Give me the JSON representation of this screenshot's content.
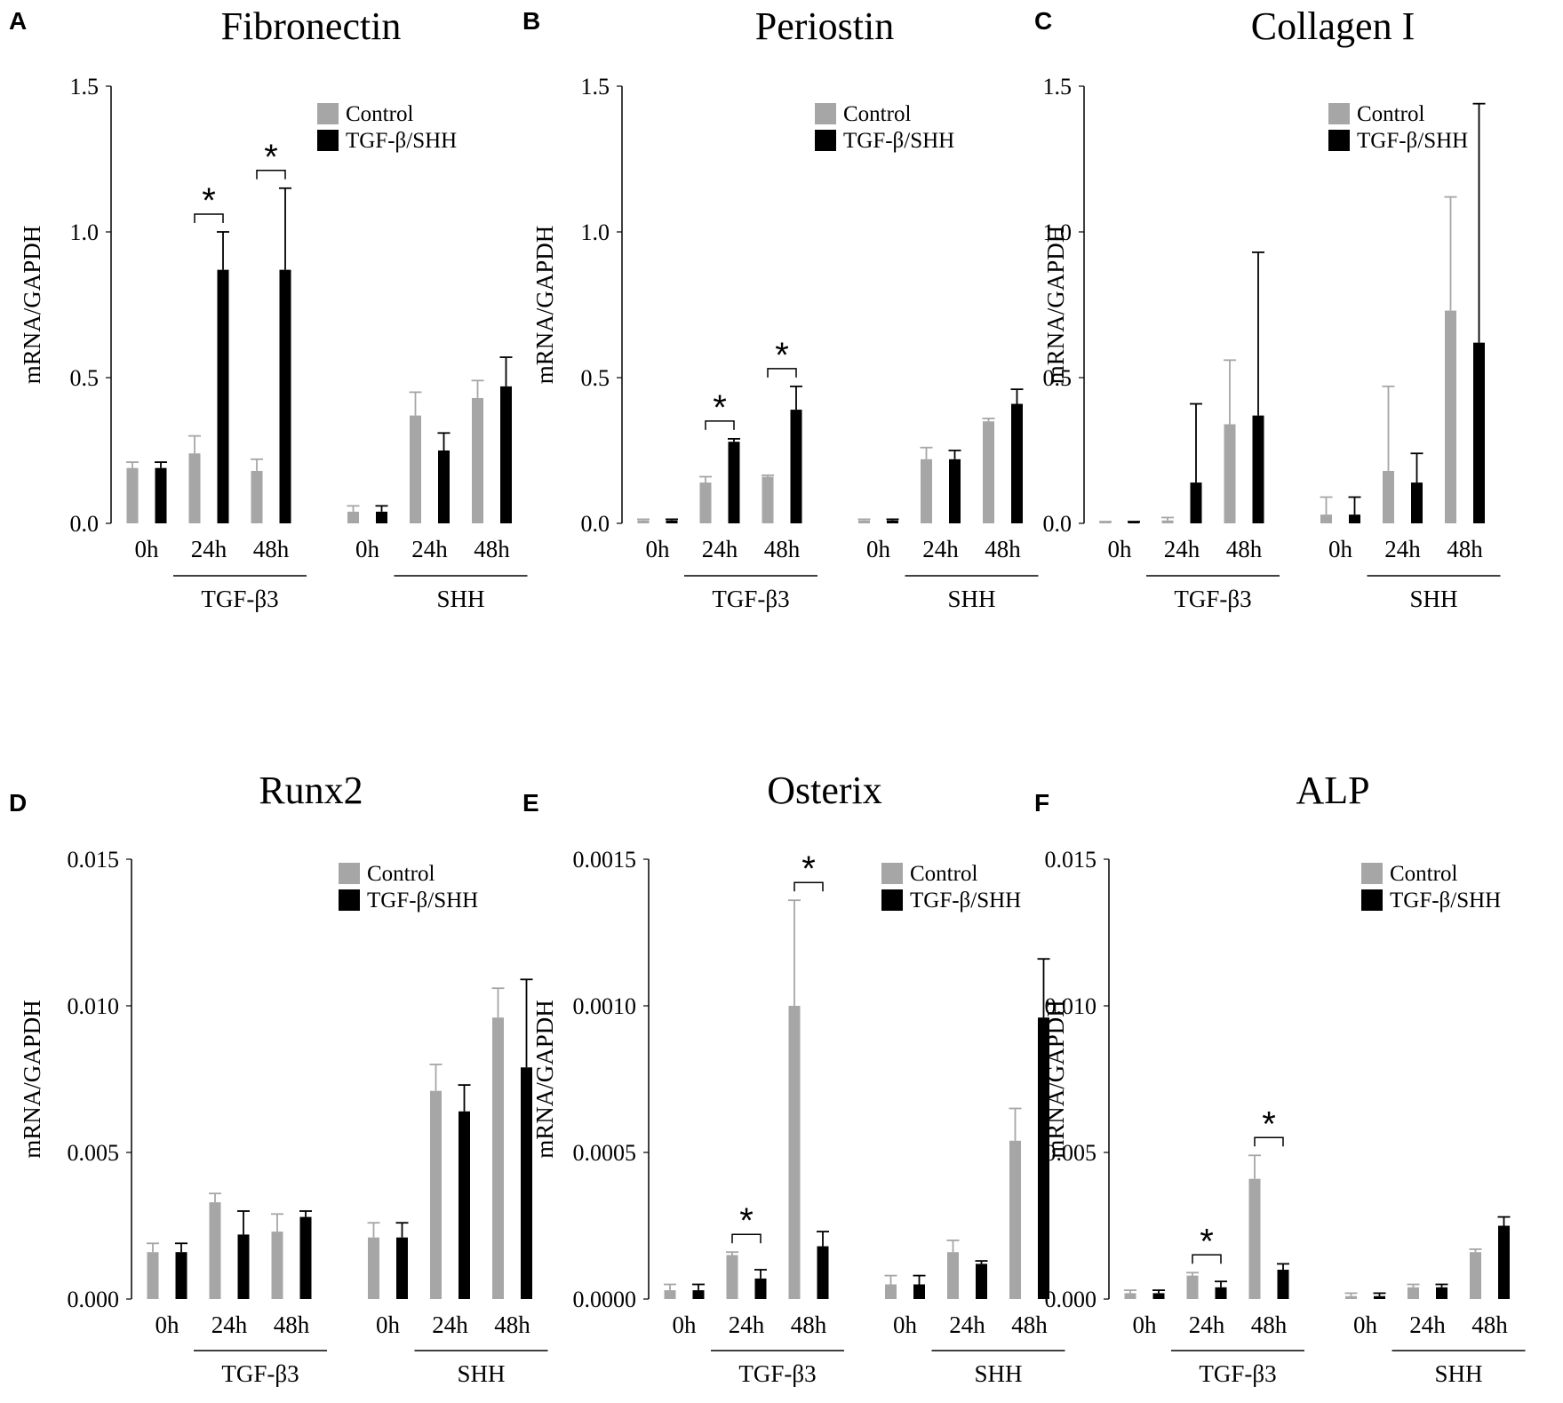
{
  "colors": {
    "control": "#a6a6a6",
    "treated": "#000000",
    "axis": "#000000"
  },
  "chart_data": [
    {
      "type": "bar",
      "letter": "A",
      "title": "Fibronectin",
      "ylabel": "mRNA/GAPDH",
      "ylim": [
        0,
        1.5
      ],
      "yticks": [
        "0.0",
        "0.5",
        "1.0",
        "1.5"
      ],
      "categories": [
        "0h",
        "24h",
        "48h",
        "0h",
        "24h",
        "48h"
      ],
      "groups": [
        "TGF-β3",
        "SHH"
      ],
      "legend": [
        "Control",
        "TGF-β/SHH"
      ],
      "series": [
        {
          "name": "Control",
          "values": [
            0.19,
            0.24,
            0.18,
            0.04,
            0.37,
            0.43
          ],
          "errors": [
            0.02,
            0.06,
            0.04,
            0.02,
            0.08,
            0.06
          ]
        },
        {
          "name": "TGF-β/SHH",
          "values": [
            0.19,
            0.87,
            0.87,
            0.04,
            0.25,
            0.47
          ],
          "errors": [
            0.02,
            0.13,
            0.28,
            0.02,
            0.06,
            0.1
          ]
        }
      ],
      "significance": [
        {
          "category": 1,
          "label": "*"
        },
        {
          "category": 2,
          "label": "*"
        }
      ]
    },
    {
      "type": "bar",
      "letter": "B",
      "title": "Periostin",
      "ylabel": "mRNA/GAPDH",
      "ylim": [
        0,
        1.5
      ],
      "yticks": [
        "0.0",
        "0.5",
        "1.0",
        "1.5"
      ],
      "categories": [
        "0h",
        "24h",
        "48h",
        "0h",
        "24h",
        "48h"
      ],
      "groups": [
        "TGF-β3",
        "SHH"
      ],
      "legend": [
        "Control",
        "TGF-β/SHH"
      ],
      "series": [
        {
          "name": "Control",
          "values": [
            0.01,
            0.14,
            0.16,
            0.01,
            0.22,
            0.35
          ],
          "errors": [
            0.004,
            0.02,
            0.005,
            0.004,
            0.04,
            0.01
          ]
        },
        {
          "name": "TGF-β/SHH",
          "values": [
            0.01,
            0.28,
            0.39,
            0.01,
            0.22,
            0.41
          ],
          "errors": [
            0.004,
            0.01,
            0.08,
            0.004,
            0.03,
            0.05
          ]
        }
      ],
      "significance": [
        {
          "category": 1,
          "label": "*"
        },
        {
          "category": 2,
          "label": "*"
        }
      ]
    },
    {
      "type": "bar",
      "letter": "C",
      "title": "Collagen I",
      "ylabel": "mRNA/GAPDH",
      "ylim": [
        0,
        1.5
      ],
      "yticks": [
        "0.0",
        "0.5",
        "1.0",
        "1.5"
      ],
      "categories": [
        "0h",
        "24h",
        "48h",
        "0h",
        "24h",
        "48h"
      ],
      "groups": [
        "TGF-β3",
        "SHH"
      ],
      "legend": [
        "Control",
        "TGF-β/SHH"
      ],
      "series": [
        {
          "name": "Control",
          "values": [
            0.004,
            0.01,
            0.34,
            0.03,
            0.18,
            0.73
          ],
          "errors": [
            0.002,
            0.01,
            0.22,
            0.06,
            0.29,
            0.39
          ]
        },
        {
          "name": "TGF-β/SHH",
          "values": [
            0.004,
            0.14,
            0.37,
            0.03,
            0.14,
            0.62
          ],
          "errors": [
            0.002,
            0.27,
            0.56,
            0.06,
            0.1,
            0.82
          ]
        }
      ],
      "significance": []
    },
    {
      "type": "bar",
      "letter": "D",
      "title": "Runx2",
      "ylabel": "mRNA/GAPDH",
      "ylim": [
        0,
        0.015
      ],
      "yticks": [
        "0.000",
        "0.005",
        "0.010",
        "0.015"
      ],
      "categories": [
        "0h",
        "24h",
        "48h",
        "0h",
        "24h",
        "48h"
      ],
      "groups": [
        "TGF-β3",
        "SHH"
      ],
      "legend": [
        "Control",
        "TGF-β/SHH"
      ],
      "series": [
        {
          "name": "Control",
          "values": [
            0.0016,
            0.0033,
            0.0023,
            0.0021,
            0.0071,
            0.0096
          ],
          "errors": [
            0.0003,
            0.0003,
            0.0006,
            0.0005,
            0.0009,
            0.001
          ]
        },
        {
          "name": "TGF-β/SHH",
          "values": [
            0.0016,
            0.0022,
            0.0028,
            0.0021,
            0.0064,
            0.0079
          ],
          "errors": [
            0.0003,
            0.0008,
            0.0002,
            0.0005,
            0.0009,
            0.003
          ]
        }
      ],
      "significance": []
    },
    {
      "type": "bar",
      "letter": "E",
      "title": "Osterix",
      "ylabel": "mRNA/GAPDH",
      "ylim": [
        0,
        0.0015
      ],
      "yticks": [
        "0.0000",
        "0.0005",
        "0.0010",
        "0.0015"
      ],
      "categories": [
        "0h",
        "24h",
        "48h",
        "0h",
        "24h",
        "48h"
      ],
      "groups": [
        "TGF-β3",
        "SHH"
      ],
      "legend": [
        "Control",
        "TGF-β/SHH"
      ],
      "series": [
        {
          "name": "Control",
          "values": [
            3e-05,
            0.00015,
            0.001,
            5e-05,
            0.00016,
            0.00054
          ],
          "errors": [
            2e-05,
            1e-05,
            0.00036,
            3e-05,
            4e-05,
            0.00011
          ]
        },
        {
          "name": "TGF-β/SHH",
          "values": [
            3e-05,
            7e-05,
            0.00018,
            5e-05,
            0.00012,
            0.00096
          ],
          "errors": [
            2e-05,
            3e-05,
            5e-05,
            3e-05,
            1e-05,
            0.0002
          ]
        }
      ],
      "significance": [
        {
          "category": 1,
          "label": "*"
        },
        {
          "category": 2,
          "label": "*"
        }
      ]
    },
    {
      "type": "bar",
      "letter": "F",
      "title": "ALP",
      "ylabel": "mRNA/GAPDH",
      "ylim": [
        0,
        0.015
      ],
      "yticks": [
        "0.000",
        "0.005",
        "0.010",
        "0.015"
      ],
      "categories": [
        "0h",
        "24h",
        "48h",
        "0h",
        "24h",
        "48h"
      ],
      "groups": [
        "TGF-β3",
        "SHH"
      ],
      "legend": [
        "Control",
        "TGF-β/SHH"
      ],
      "series": [
        {
          "name": "Control",
          "values": [
            0.0002,
            0.0008,
            0.0041,
            0.0001,
            0.0004,
            0.0016
          ],
          "errors": [
            0.0001,
            0.0001,
            0.0008,
            0.0001,
            0.0001,
            0.0001
          ]
        },
        {
          "name": "TGF-β/SHH",
          "values": [
            0.0002,
            0.0004,
            0.001,
            0.0001,
            0.0004,
            0.0025
          ],
          "errors": [
            0.0001,
            0.0002,
            0.0002,
            0.0001,
            0.0001,
            0.0003
          ]
        }
      ],
      "significance": [
        {
          "category": 1,
          "label": "*"
        },
        {
          "category": 2,
          "label": "*"
        }
      ]
    }
  ]
}
